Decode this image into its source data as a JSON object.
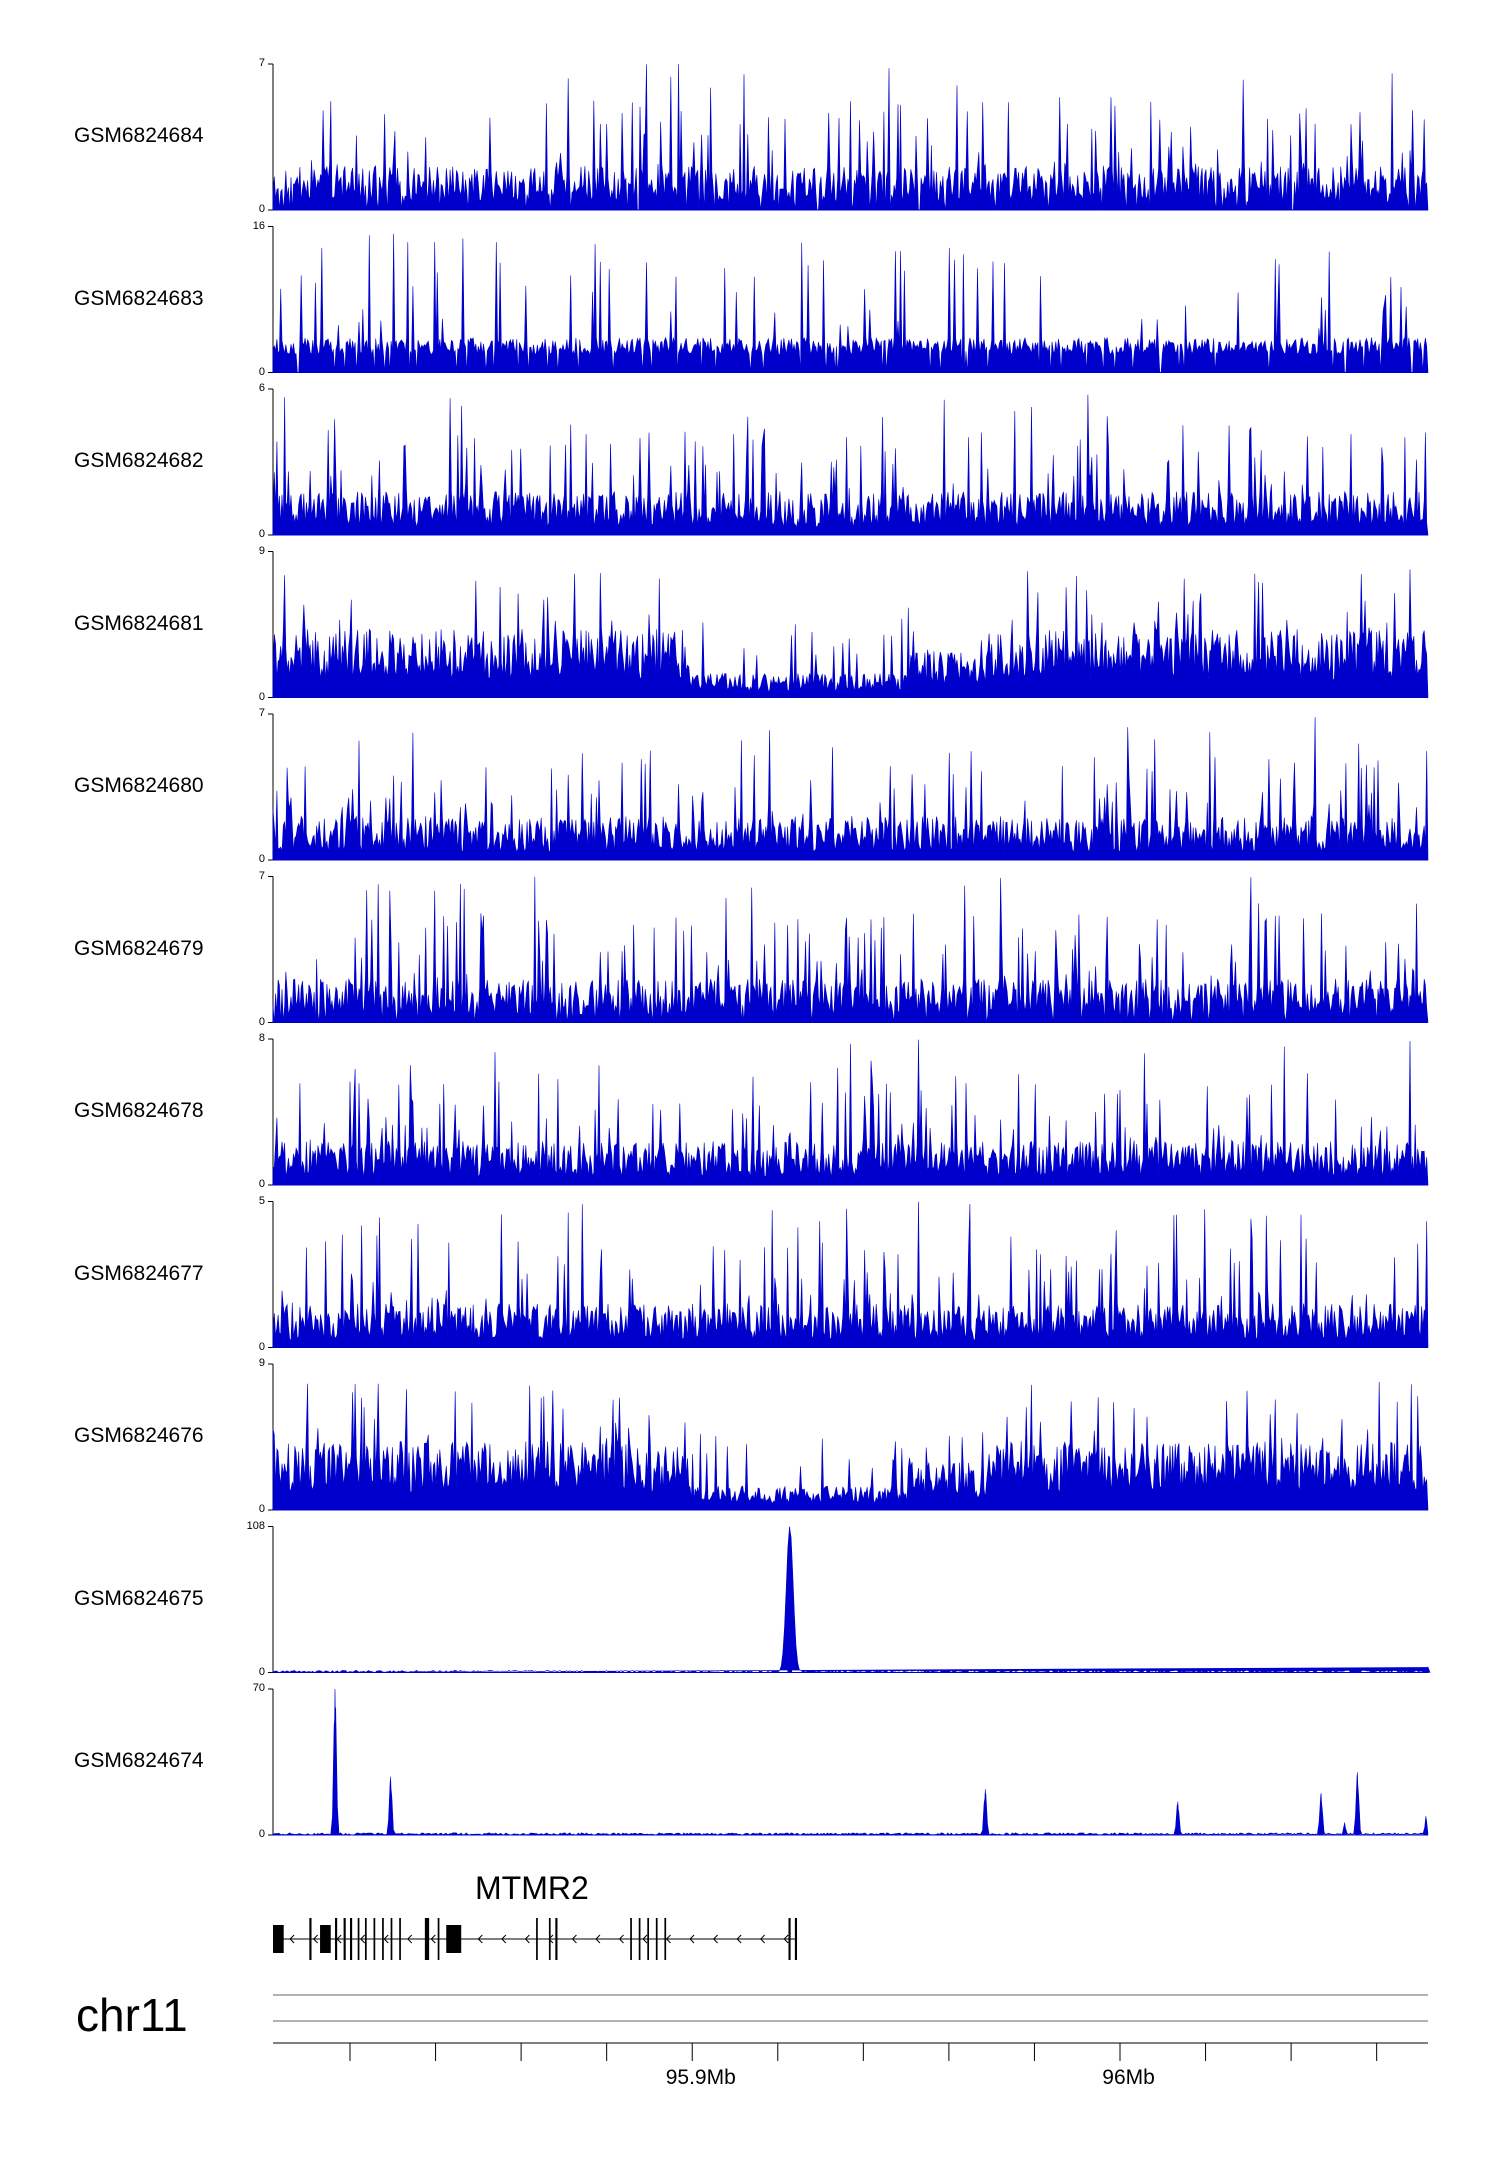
{
  "chart_data": {
    "type": "genome-browser-tracks",
    "chromosome": "chr11",
    "region": {
      "start": 95.8,
      "end": 96.07,
      "units": "Mb"
    },
    "color": "#0000cc",
    "tracks": [
      {
        "name": "GSM6824684",
        "ymin": 0,
        "ymax": 7,
        "ymin_label": "0",
        "ymax_label": "7",
        "profile": "noisy-gapped",
        "seed": 11
      },
      {
        "name": "GSM6824683",
        "ymin": 0,
        "ymax": 16,
        "ymin_label": "0",
        "ymax_label": "16",
        "profile": "sparse-triangles",
        "seed": 23
      },
      {
        "name": "GSM6824682",
        "ymin": 0,
        "ymax": 6,
        "ymin_label": "0",
        "ymax_label": "6",
        "profile": "noisy",
        "seed": 37
      },
      {
        "name": "GSM6824681",
        "ymin": 0,
        "ymax": 9,
        "ymin_label": "0",
        "ymax_label": "9",
        "profile": "dense-dip",
        "seed": 41
      },
      {
        "name": "GSM6824680",
        "ymin": 0,
        "ymax": 7,
        "ymin_label": "0",
        "ymax_label": "7",
        "profile": "noisy",
        "seed": 53
      },
      {
        "name": "GSM6824679",
        "ymin": 0,
        "ymax": 7,
        "ymin_label": "0",
        "ymax_label": "7",
        "profile": "noisy-gapped",
        "seed": 67
      },
      {
        "name": "GSM6824678",
        "ymin": 0,
        "ymax": 8,
        "ymin_label": "0",
        "ymax_label": "8",
        "profile": "noisy",
        "seed": 71
      },
      {
        "name": "GSM6824677",
        "ymin": 0,
        "ymax": 5,
        "ymin_label": "0",
        "ymax_label": "5",
        "profile": "noisy",
        "seed": 83
      },
      {
        "name": "GSM6824676",
        "ymin": 0,
        "ymax": 9,
        "ymin_label": "0",
        "ymax_label": "9",
        "profile": "dense-dip",
        "seed": 97
      },
      {
        "name": "GSM6824675",
        "ymin": 0,
        "ymax": 108,
        "ymin_label": "0",
        "ymax_label": "108",
        "profile": "peaks",
        "peaks": [
          {
            "pos": 95.9208,
            "height": 108,
            "width": 0.0008
          },
          {
            "pos": 96.07,
            "height": 4,
            "width": 0.0002
          }
        ]
      },
      {
        "name": "GSM6824674",
        "ymin": 0,
        "ymax": 70,
        "ymin_label": "0",
        "ymax_label": "70",
        "profile": "peaks",
        "peaks": [
          {
            "pos": 95.8145,
            "height": 70,
            "width": 0.0003
          },
          {
            "pos": 95.8275,
            "height": 28,
            "width": 0.0003
          },
          {
            "pos": 95.9665,
            "height": 22,
            "width": 0.0003
          },
          {
            "pos": 96.0115,
            "height": 16,
            "width": 0.0003
          },
          {
            "pos": 96.045,
            "height": 20,
            "width": 0.0003
          },
          {
            "pos": 96.0535,
            "height": 30,
            "width": 0.0003
          },
          {
            "pos": 96.0505,
            "height": 6,
            "width": 0.0002
          },
          {
            "pos": 96.0695,
            "height": 9,
            "width": 0.0002
          }
        ]
      }
    ],
    "gene": {
      "name": "MTMR2",
      "start": 95.8,
      "end": 95.9225,
      "strand": "-",
      "exons": [
        [
          95.8,
          95.8025
        ],
        [
          95.8085,
          95.809
        ],
        [
          95.811,
          95.8135
        ],
        [
          95.8145,
          95.815
        ],
        [
          95.8165,
          95.817
        ],
        [
          95.818,
          95.8185
        ],
        [
          95.8198,
          95.8202
        ],
        [
          95.8215,
          95.8219
        ],
        [
          95.8235,
          95.8239
        ],
        [
          95.8255,
          95.8259
        ],
        [
          95.8275,
          95.8279
        ],
        [
          95.8295,
          95.8299
        ],
        [
          95.8355,
          95.8365
        ],
        [
          95.8385,
          95.8389
        ],
        [
          95.8405,
          95.844
        ],
        [
          95.8615,
          95.8619
        ],
        [
          95.8645,
          95.8649
        ],
        [
          95.866,
          95.8665
        ],
        [
          95.8835,
          95.8839
        ],
        [
          95.8855,
          95.8859
        ],
        [
          95.8875,
          95.8879
        ],
        [
          95.8895,
          95.8899
        ],
        [
          95.8915,
          95.8919
        ],
        [
          95.9205,
          95.921
        ],
        [
          95.922,
          95.9225
        ]
      ]
    },
    "x_ticks": [
      95.818,
      95.838,
      95.858,
      95.878,
      95.898,
      95.918,
      95.938,
      95.958,
      95.978,
      95.998,
      96.018,
      96.038,
      96.058
    ],
    "x_tick_labels": [
      {
        "pos": 95.9,
        "label": "95.9Mb"
      },
      {
        "pos": 96.0,
        "label": "96Mb"
      }
    ]
  }
}
